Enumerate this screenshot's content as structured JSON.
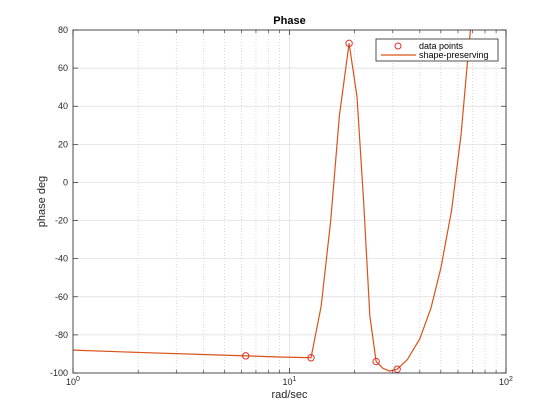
{
  "chart_data": {
    "type": "line",
    "title": "Phase",
    "xlabel": "rad/sec",
    "ylabel": "phase deg",
    "xscale": "log",
    "xlim": [
      1,
      100
    ],
    "ylim": [
      -100,
      80
    ],
    "x_ticks": [
      1,
      10,
      100
    ],
    "x_tick_labels": [
      {
        "base": "10",
        "exp": "0"
      },
      {
        "base": "10",
        "exp": "1"
      },
      {
        "base": "10",
        "exp": "2"
      }
    ],
    "y_ticks": [
      -100,
      -80,
      -60,
      -40,
      -20,
      0,
      20,
      40,
      60,
      80
    ],
    "y_tick_labels": [
      "-100",
      "-80",
      "-60",
      "-40",
      "-20",
      "0",
      "20",
      "40",
      "60",
      "80"
    ],
    "grid": true,
    "legend_position": "top-right",
    "series": [
      {
        "name": "data points",
        "style": "markers",
        "color": "#e0302a",
        "x": [
          6.28,
          12.57,
          18.85,
          25.13,
          31.42
        ],
        "y": [
          -91,
          -92,
          73,
          -94,
          -98
        ]
      },
      {
        "name": "shape-preserving",
        "style": "line",
        "color": "#d95319",
        "x": [
          1,
          2,
          4,
          6.28,
          9,
          12.57,
          14,
          15.5,
          17,
          18.85,
          20.5,
          22,
          23.5,
          25.13,
          27,
          29,
          31.42,
          35,
          40,
          45,
          50,
          56,
          62,
          66,
          68.5
        ],
        "y": [
          -88,
          -89.2,
          -90.3,
          -91,
          -91.6,
          -92,
          -65,
          -20,
          35,
          73,
          45,
          -10,
          -70,
          -94,
          -97.5,
          -99,
          -98,
          -93,
          -82,
          -66,
          -45,
          -15,
          25,
          60,
          80
        ]
      }
    ]
  }
}
